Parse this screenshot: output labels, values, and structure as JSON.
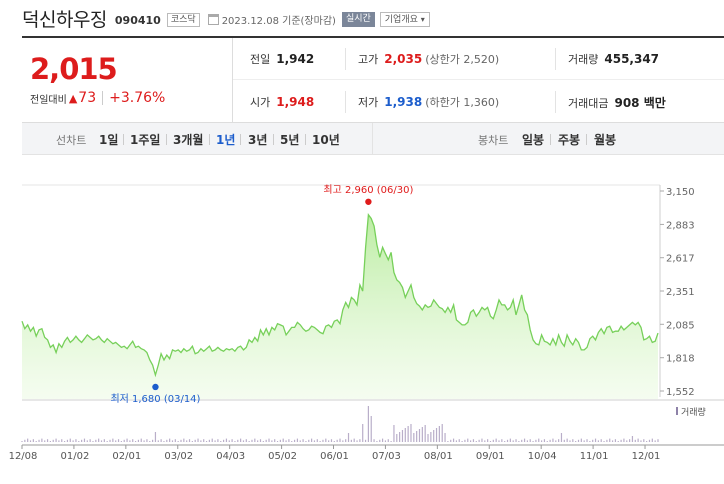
{
  "header": {
    "name": "덕신하우징",
    "code": "090410",
    "market": "코스닥",
    "date": "2023.12.08 기준(장마감)",
    "realtime": "실시간",
    "overview": "기업개요"
  },
  "summary": {
    "price": "2,015",
    "change_label": "전일대비",
    "change_value": "73",
    "change_pct": "+3.76%",
    "prev_label": "전일",
    "prev_value": "1,942",
    "high_label": "고가",
    "high_value": "2,035",
    "upper_limit": "(상한가 2,520)",
    "volume_label": "거래량",
    "volume_value": "455,347",
    "open_label": "시가",
    "open_value": "1,948",
    "low_label": "저가",
    "low_value": "1,938",
    "lower_limit": "(하한가 1,360)",
    "amount_label": "거래대금",
    "amount_value": "908 백만"
  },
  "tabs": {
    "line_label": "선차트",
    "line_periods": [
      "1일",
      "1주일",
      "3개월",
      "1년",
      "3년",
      "5년",
      "10년"
    ],
    "active": "1년",
    "candle_label": "봉차트",
    "candle_periods": [
      "일봉",
      "주봉",
      "월봉"
    ]
  },
  "chart_data": {
    "type": "area",
    "ylim": [
      1552,
      3150
    ],
    "yticks": [
      "3,150",
      "2,883",
      "2,617",
      "2,351",
      "2,085",
      "1,818",
      "1,552"
    ],
    "x_ticks": [
      "12/08",
      "01/02",
      "02/01",
      "03/02",
      "04/03",
      "05/02",
      "06/01",
      "07/03",
      "08/01",
      "09/01",
      "10/04",
      "11/01",
      "12/01"
    ],
    "high_annotation": "최고 2,960 (06/30)",
    "low_annotation": "최저 1,680 (03/14)",
    "high": {
      "date": "06/30",
      "value": 2960
    },
    "low": {
      "date": "03/14",
      "value": 1680
    },
    "volume_legend": "거래량",
    "series": [
      {
        "values": [
          2110,
          2050,
          2080,
          2030,
          2060,
          1990,
          2040,
          2050,
          1980,
          1960,
          1900,
          1920,
          1860,
          1930,
          1900,
          1950,
          1980,
          1940,
          1960,
          1990,
          1960,
          1940,
          1970,
          2000,
          1980,
          1960,
          1970,
          1990,
          1960,
          1940,
          1970,
          1950,
          1930,
          1940,
          1920,
          1900,
          1910,
          1890,
          1920,
          1950,
          1900,
          1910,
          1890,
          1880,
          1860,
          1800,
          1760,
          1680,
          1760,
          1850,
          1800,
          1840,
          1810,
          1880,
          1870,
          1880,
          1860,
          1890,
          1870,
          1880,
          1910,
          1850,
          1860,
          1890,
          1870,
          1890,
          1910,
          1870,
          1880,
          1900,
          1880,
          1870,
          1890,
          1880,
          1890,
          1870,
          1900,
          1910,
          1880,
          1900,
          1960,
          1940,
          1980,
          1950,
          2040,
          2000,
          2050,
          2000,
          2060,
          2040,
          2090,
          2080,
          2070,
          2000,
          2030,
          2060,
          2060,
          2100,
          2080,
          2050,
          2030,
          2040,
          2070,
          2060,
          2040,
          2020,
          2010,
          2070,
          2080,
          2060,
          2110,
          2120,
          2090,
          2200,
          2260,
          2220,
          2300,
          2280,
          2240,
          2400,
          2350,
          2700,
          2960,
          2930,
          2870,
          2720,
          2620,
          2700,
          2650,
          2600,
          2660,
          2500,
          2440,
          2420,
          2380,
          2300,
          2350,
          2400,
          2300,
          2250,
          2230,
          2200,
          2240,
          2220,
          2230,
          2280,
          2250,
          2220,
          2210,
          2180,
          2220,
          2180,
          2240,
          2120,
          2100,
          2080,
          2080,
          2100,
          2180,
          2200,
          2150,
          2180,
          2220,
          2200,
          2220,
          2150,
          2130,
          2200,
          2280,
          2240,
          2240,
          2200,
          2220,
          2280,
          2160,
          2240,
          2320,
          2200,
          2160,
          2040,
          1960,
          1930,
          1920,
          2000,
          1950,
          1940,
          1920,
          1970,
          1920,
          2000,
          1940,
          1910,
          2000,
          1950,
          1920,
          1970,
          1940,
          1880,
          1880,
          1900,
          1970,
          1990,
          1960,
          2020,
          2050,
          2010,
          2060,
          2070,
          2020,
          2030,
          2030,
          2070,
          2040,
          2060,
          2080,
          2100,
          2080,
          2100,
          2060,
          1960,
          1970,
          1990,
          1940,
          1950,
          2015
        ]
      }
    ]
  }
}
